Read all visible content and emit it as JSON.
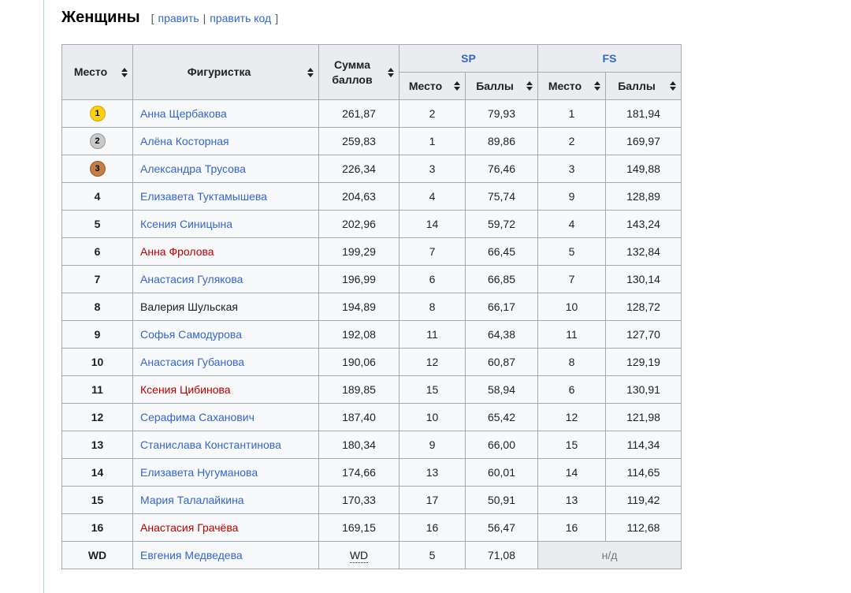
{
  "page": {
    "title": "Женщины",
    "edit": {
      "open": "[",
      "edit_label": "править",
      "pipe": "|",
      "edit_source_label": "править код",
      "close": "]"
    }
  },
  "colors": {
    "link_blue": "#3366cc",
    "red_link": "#ba0000",
    "header_bg": "#eaecf0",
    "row_bg": "#f8f9fa",
    "table_border": "#a2a9b1",
    "content_divider": "#a7d7f9",
    "gold_medal": "#fbd20b",
    "silver_medal": "#c9c9c9",
    "bronze_medal": "#c47e48",
    "na_text": "#72777d"
  },
  "table": {
    "headers": {
      "place": "Место",
      "skater": "Фигуристка",
      "total": "Сумма баллов",
      "sp": "SP",
      "fs": "FS",
      "sub_place": "Место",
      "sub_points": "Баллы"
    },
    "na_label": "н/д",
    "rows": [
      {
        "place": "1",
        "medal": "gold",
        "name": "Анна Щербакова",
        "link": "blue",
        "total": "261,87",
        "sp_place": "2",
        "sp_points": "79,93",
        "fs_place": "1",
        "fs_points": "181,94"
      },
      {
        "place": "2",
        "medal": "silver",
        "name": "Алёна Косторная",
        "link": "blue",
        "total": "259,83",
        "sp_place": "1",
        "sp_points": "89,86",
        "fs_place": "2",
        "fs_points": "169,97"
      },
      {
        "place": "3",
        "medal": "bronze",
        "name": "Александра Трусова",
        "link": "blue",
        "total": "226,34",
        "sp_place": "3",
        "sp_points": "76,46",
        "fs_place": "3",
        "fs_points": "149,88"
      },
      {
        "place": "4",
        "medal": null,
        "name": "Елизавета Туктамышева",
        "link": "blue",
        "total": "204,63",
        "sp_place": "4",
        "sp_points": "75,74",
        "fs_place": "9",
        "fs_points": "128,89"
      },
      {
        "place": "5",
        "medal": null,
        "name": "Ксения Синицына",
        "link": "blue",
        "total": "202,96",
        "sp_place": "14",
        "sp_points": "59,72",
        "fs_place": "4",
        "fs_points": "143,24"
      },
      {
        "place": "6",
        "medal": null,
        "name": "Анна Фролова",
        "link": "red",
        "total": "199,29",
        "sp_place": "7",
        "sp_points": "66,45",
        "fs_place": "5",
        "fs_points": "132,84"
      },
      {
        "place": "7",
        "medal": null,
        "name": "Анастасия Гулякова",
        "link": "blue",
        "total": "196,99",
        "sp_place": "6",
        "sp_points": "66,85",
        "fs_place": "7",
        "fs_points": "130,14"
      },
      {
        "place": "8",
        "medal": null,
        "name": "Валерия Шульская",
        "link": "plain",
        "total": "194,89",
        "sp_place": "8",
        "sp_points": "66,17",
        "fs_place": "10",
        "fs_points": "128,72"
      },
      {
        "place": "9",
        "medal": null,
        "name": "Софья Самодурова",
        "link": "blue",
        "total": "192,08",
        "sp_place": "11",
        "sp_points": "64,38",
        "fs_place": "11",
        "fs_points": "127,70"
      },
      {
        "place": "10",
        "medal": null,
        "name": "Анастасия Губанова",
        "link": "blue",
        "total": "190,06",
        "sp_place": "12",
        "sp_points": "60,87",
        "fs_place": "8",
        "fs_points": "129,19"
      },
      {
        "place": "11",
        "medal": null,
        "name": "Ксения Цибинова",
        "link": "red",
        "total": "189,85",
        "sp_place": "15",
        "sp_points": "58,94",
        "fs_place": "6",
        "fs_points": "130,91"
      },
      {
        "place": "12",
        "medal": null,
        "name": "Серафима Саханович",
        "link": "blue",
        "total": "187,40",
        "sp_place": "10",
        "sp_points": "65,42",
        "fs_place": "12",
        "fs_points": "121,98"
      },
      {
        "place": "13",
        "medal": null,
        "name": "Станислава Константинова",
        "link": "blue",
        "total": "180,34",
        "sp_place": "9",
        "sp_points": "66,00",
        "fs_place": "15",
        "fs_points": "114,34"
      },
      {
        "place": "14",
        "medal": null,
        "name": "Елизавета Нугуманова",
        "link": "blue",
        "total": "174,66",
        "sp_place": "13",
        "sp_points": "60,01",
        "fs_place": "14",
        "fs_points": "114,65"
      },
      {
        "place": "15",
        "medal": null,
        "name": "Мария Талалайкина",
        "link": "blue",
        "total": "170,33",
        "sp_place": "17",
        "sp_points": "50,91",
        "fs_place": "13",
        "fs_points": "119,42"
      },
      {
        "place": "16",
        "medal": null,
        "name": "Анастасия Грачёва",
        "link": "red",
        "total": "169,15",
        "sp_place": "16",
        "sp_points": "56,47",
        "fs_place": "16",
        "fs_points": "112,68"
      },
      {
        "place": "WD",
        "medal": null,
        "name": "Евгения Медведева",
        "link": "blue",
        "total": "WD",
        "withdrawn": true,
        "sp_place": "5",
        "sp_points": "71,08",
        "fs_na": true
      }
    ]
  }
}
